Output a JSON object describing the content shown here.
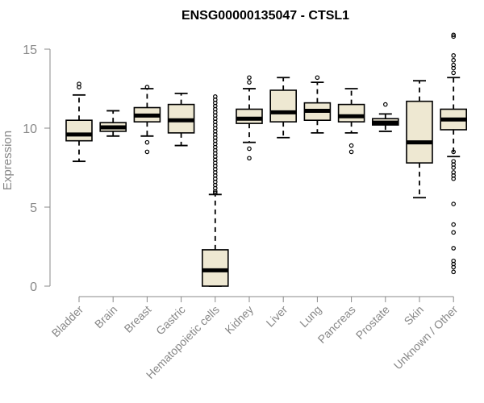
{
  "chart_data": {
    "type": "boxplot",
    "title": "ENSG00000135047 - CTSL1",
    "xlabel": "",
    "ylabel": "Expression",
    "ylim": [
      0,
      15
    ],
    "yticks": [
      0,
      5,
      10,
      15
    ],
    "box_color": "#EEE8D2",
    "categories": [
      "Bladder",
      "Brain",
      "Breast",
      "Gastric",
      "Hematopoietic cells",
      "Kidney",
      "Liver",
      "Lung",
      "Pancreas",
      "Prostate",
      "Skin",
      "Unknown / Other"
    ],
    "boxes": [
      {
        "name": "Bladder",
        "whisker_low": 7.9,
        "q1": 9.2,
        "median": 9.6,
        "q3": 10.5,
        "whisker_high": 12.1,
        "outliers": [
          12.6,
          12.8
        ]
      },
      {
        "name": "Brain",
        "whisker_low": 9.5,
        "q1": 9.8,
        "median": 10.05,
        "q3": 10.35,
        "whisker_high": 11.1,
        "outliers": []
      },
      {
        "name": "Breast",
        "whisker_low": 9.5,
        "q1": 10.4,
        "median": 10.8,
        "q3": 11.3,
        "whisker_high": 12.5,
        "outliers": [
          8.5,
          9.1,
          12.6
        ]
      },
      {
        "name": "Gastric",
        "whisker_low": 8.9,
        "q1": 9.7,
        "median": 10.5,
        "q3": 11.5,
        "whisker_high": 12.2,
        "outliers": []
      },
      {
        "name": "Hematopoietic cells",
        "whisker_low": 0.0,
        "q1": 0.0,
        "median": 1.0,
        "q3": 2.3,
        "whisker_high": 5.8,
        "outliers": [
          5.9,
          6.0,
          6.2,
          6.4,
          6.6,
          6.8,
          7.0,
          7.2,
          7.4,
          7.6,
          7.8,
          8.0,
          8.2,
          8.4,
          8.6,
          8.8,
          9.0,
          9.2,
          9.4,
          9.6,
          9.8,
          10.0,
          10.2,
          10.4,
          10.6,
          10.8,
          11.0,
          11.2,
          11.4,
          11.6,
          11.8,
          12.0
        ]
      },
      {
        "name": "Kidney",
        "whisker_low": 9.1,
        "q1": 10.3,
        "median": 10.6,
        "q3": 11.2,
        "whisker_high": 12.5,
        "outliers": [
          8.1,
          8.7,
          12.9,
          13.2
        ]
      },
      {
        "name": "Liver",
        "whisker_low": 9.4,
        "q1": 10.4,
        "median": 11.0,
        "q3": 12.4,
        "whisker_high": 13.2,
        "outliers": []
      },
      {
        "name": "Lung",
        "whisker_low": 9.7,
        "q1": 10.5,
        "median": 11.1,
        "q3": 11.6,
        "whisker_high": 12.9,
        "outliers": [
          13.2
        ]
      },
      {
        "name": "Pancreas",
        "whisker_low": 9.7,
        "q1": 10.4,
        "median": 10.75,
        "q3": 11.5,
        "whisker_high": 12.5,
        "outliers": [
          8.5,
          8.9
        ]
      },
      {
        "name": "Prostate",
        "whisker_low": 9.8,
        "q1": 10.2,
        "median": 10.35,
        "q3": 10.6,
        "whisker_high": 10.9,
        "outliers": [
          11.5
        ]
      },
      {
        "name": "Skin",
        "whisker_low": 5.6,
        "q1": 7.8,
        "median": 9.1,
        "q3": 11.7,
        "whisker_high": 13.0,
        "outliers": []
      },
      {
        "name": "Unknown / Other",
        "whisker_low": 8.2,
        "q1": 9.9,
        "median": 10.55,
        "q3": 11.2,
        "whisker_high": 13.2,
        "outliers": [
          0.9,
          1.2,
          1.4,
          1.6,
          2.4,
          3.4,
          3.9,
          5.2,
          6.8,
          7.0,
          7.2,
          7.5,
          7.7,
          7.9,
          8.5,
          13.5,
          13.8,
          14.0,
          14.3,
          14.6,
          15.8,
          15.9
        ]
      }
    ]
  }
}
